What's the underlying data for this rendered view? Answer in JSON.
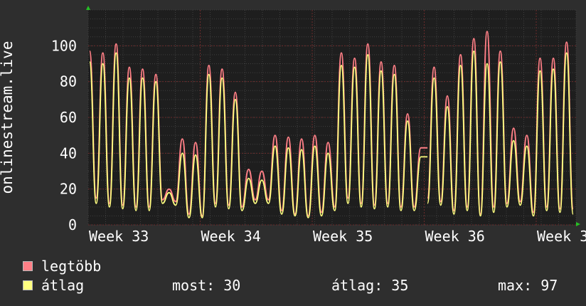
{
  "chart_data": {
    "type": "line",
    "ylabel": "onlinestream.live",
    "ylim": [
      0,
      120
    ],
    "yticks": [
      0,
      20,
      40,
      60,
      80,
      100
    ],
    "xticks": [
      "Week 33",
      "Week 34",
      "Week 35",
      "Week 36",
      "Week 3"
    ],
    "grid": true,
    "legend": "bottom-left",
    "series": [
      {
        "name": "legtöbb",
        "color": "#ff7f86",
        "values": [
          97,
          15,
          96,
          12,
          101,
          11,
          88,
          10,
          87,
          10,
          84,
          14,
          20,
          13,
          48,
          6,
          46,
          5,
          89,
          12,
          87,
          11,
          74,
          10,
          31,
          14,
          30,
          14,
          50,
          8,
          49,
          6,
          48,
          5,
          50,
          7,
          46,
          10,
          96,
          15,
          93,
          12,
          101,
          11,
          91,
          12,
          89,
          10,
          62,
          10,
          43,
          15,
          88,
          13,
          72,
          8,
          95,
          10,
          104,
          6,
          108,
          10,
          97,
          12,
          54,
          13,
          50,
          7,
          93,
          10,
          93,
          9,
          102,
          9
        ],
        "breaks": [
          [
            50,
            51
          ]
        ]
      },
      {
        "name": "átlag",
        "color": "#ffff80",
        "values": [
          91,
          12,
          90,
          10,
          96,
          9,
          82,
          8,
          82,
          8,
          80,
          12,
          18,
          11,
          40,
          4,
          39,
          4,
          84,
          10,
          82,
          9,
          70,
          8,
          26,
          12,
          25,
          12,
          44,
          6,
          43,
          5,
          42,
          4,
          44,
          5,
          40,
          8,
          89,
          12,
          88,
          10,
          95,
          9,
          86,
          10,
          84,
          8,
          58,
          8,
          38,
          12,
          82,
          11,
          66,
          6,
          89,
          8,
          97,
          5,
          90,
          7,
          91,
          10,
          47,
          11,
          44,
          5,
          86,
          8,
          87,
          7,
          96,
          6
        ],
        "breaks": [
          [
            50,
            51
          ]
        ]
      }
    ]
  },
  "legend": {
    "max_label": "legtöbb",
    "avg_label": "átlag",
    "now_label": "most:",
    "now_value": "30",
    "avg_stat_label": "átlag:",
    "avg_stat_value": "35",
    "max_stat_label": "max:",
    "max_stat_value": "97"
  },
  "colors": {
    "background": "#2e2e2e",
    "plot_background": "#1e1e1e",
    "grid_major": "#6b2b2b",
    "grid_minor": "#3f3f3f",
    "axis_arrow": "#25c025"
  }
}
